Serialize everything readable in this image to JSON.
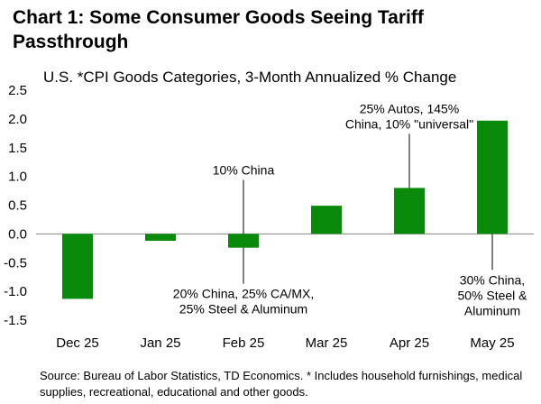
{
  "chart_data": {
    "type": "bar",
    "title": "Chart 1: Some Consumer Goods Seeing Tariff Passthrough",
    "subtitle": "U.S. *CPI Goods Categories, 3-Month Annualized % Change",
    "categories": [
      "Dec 25",
      "Jan 25",
      "Feb 25",
      "Mar 25",
      "Apr 25",
      "May 25"
    ],
    "values": [
      -1.13,
      -0.12,
      -0.24,
      0.49,
      0.8,
      1.97
    ],
    "ylim": [
      -1.5,
      2.5
    ],
    "yticks": [
      "2.5",
      "2.0",
      "1.5",
      "1.0",
      "0.5",
      "0.0",
      "-0.5",
      "-1.0",
      "-1.5"
    ],
    "ytick_values": [
      2.5,
      2.0,
      1.5,
      1.0,
      0.5,
      0.0,
      -0.5,
      -1.0,
      -1.5
    ],
    "bar_color": "#0a8a0a",
    "grid": false,
    "annotations": [
      {
        "category": "Feb 25",
        "side": "above",
        "lines": [
          "10% China"
        ]
      },
      {
        "category": "Feb 25",
        "side": "below",
        "lines": [
          "20% China, 25% CA/MX,",
          "25% Steel & Aluminum"
        ]
      },
      {
        "category": "Apr 25",
        "side": "above",
        "lines": [
          "25% Autos, 145%",
          "China, 10% \"universal\""
        ]
      },
      {
        "category": "May 25",
        "side": "below",
        "lines": [
          "30% China,",
          "50% Steel &",
          "Aluminum"
        ]
      }
    ],
    "source": "Source: Bureau of Labor Statistics, TD Economics. * Includes household furnishings, medical supplies, recreational, educational and other goods."
  }
}
